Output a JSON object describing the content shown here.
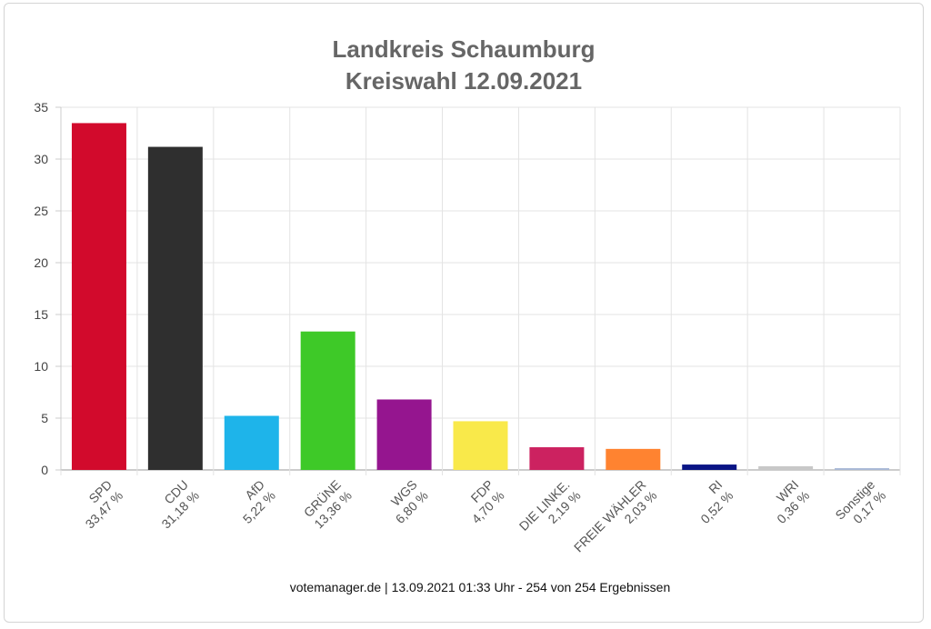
{
  "chart_data": {
    "type": "bar",
    "title": [
      "Landkreis Schaumburg",
      "Kreiswahl 12.09.2021"
    ],
    "categories": [
      "SPD",
      "CDU",
      "AfD",
      "GRÜNE",
      "WGS",
      "FDP",
      "DIE LINKE.",
      "FREIE WÄHLER",
      "RI",
      "WRI",
      "Sonstige"
    ],
    "value_labels": [
      "33,47 %",
      "31,18 %",
      "5,22 %",
      "13,36 %",
      "6,80 %",
      "4,70 %",
      "2,19 %",
      "2,03 %",
      "0,52 %",
      "0,36 %",
      "0,17 %"
    ],
    "values": [
      33.47,
      31.18,
      5.22,
      13.36,
      6.8,
      4.7,
      2.19,
      2.03,
      0.52,
      0.36,
      0.17
    ],
    "colors": [
      "#d20a2c",
      "#2f2f2f",
      "#1eb4ea",
      "#3ec928",
      "#95158f",
      "#f9e94a",
      "#cc2260",
      "#ff8330",
      "#0a1585",
      "#c8c8c8",
      "#a8b8d6"
    ],
    "yticks": [
      0,
      5,
      10,
      15,
      20,
      25,
      30,
      35
    ],
    "ylim": [
      0,
      35
    ],
    "grid": true,
    "legend": "none"
  },
  "footer": "votemanager.de | 13.09.2021 01:33 Uhr - 254 von 254 Ergebnissen"
}
